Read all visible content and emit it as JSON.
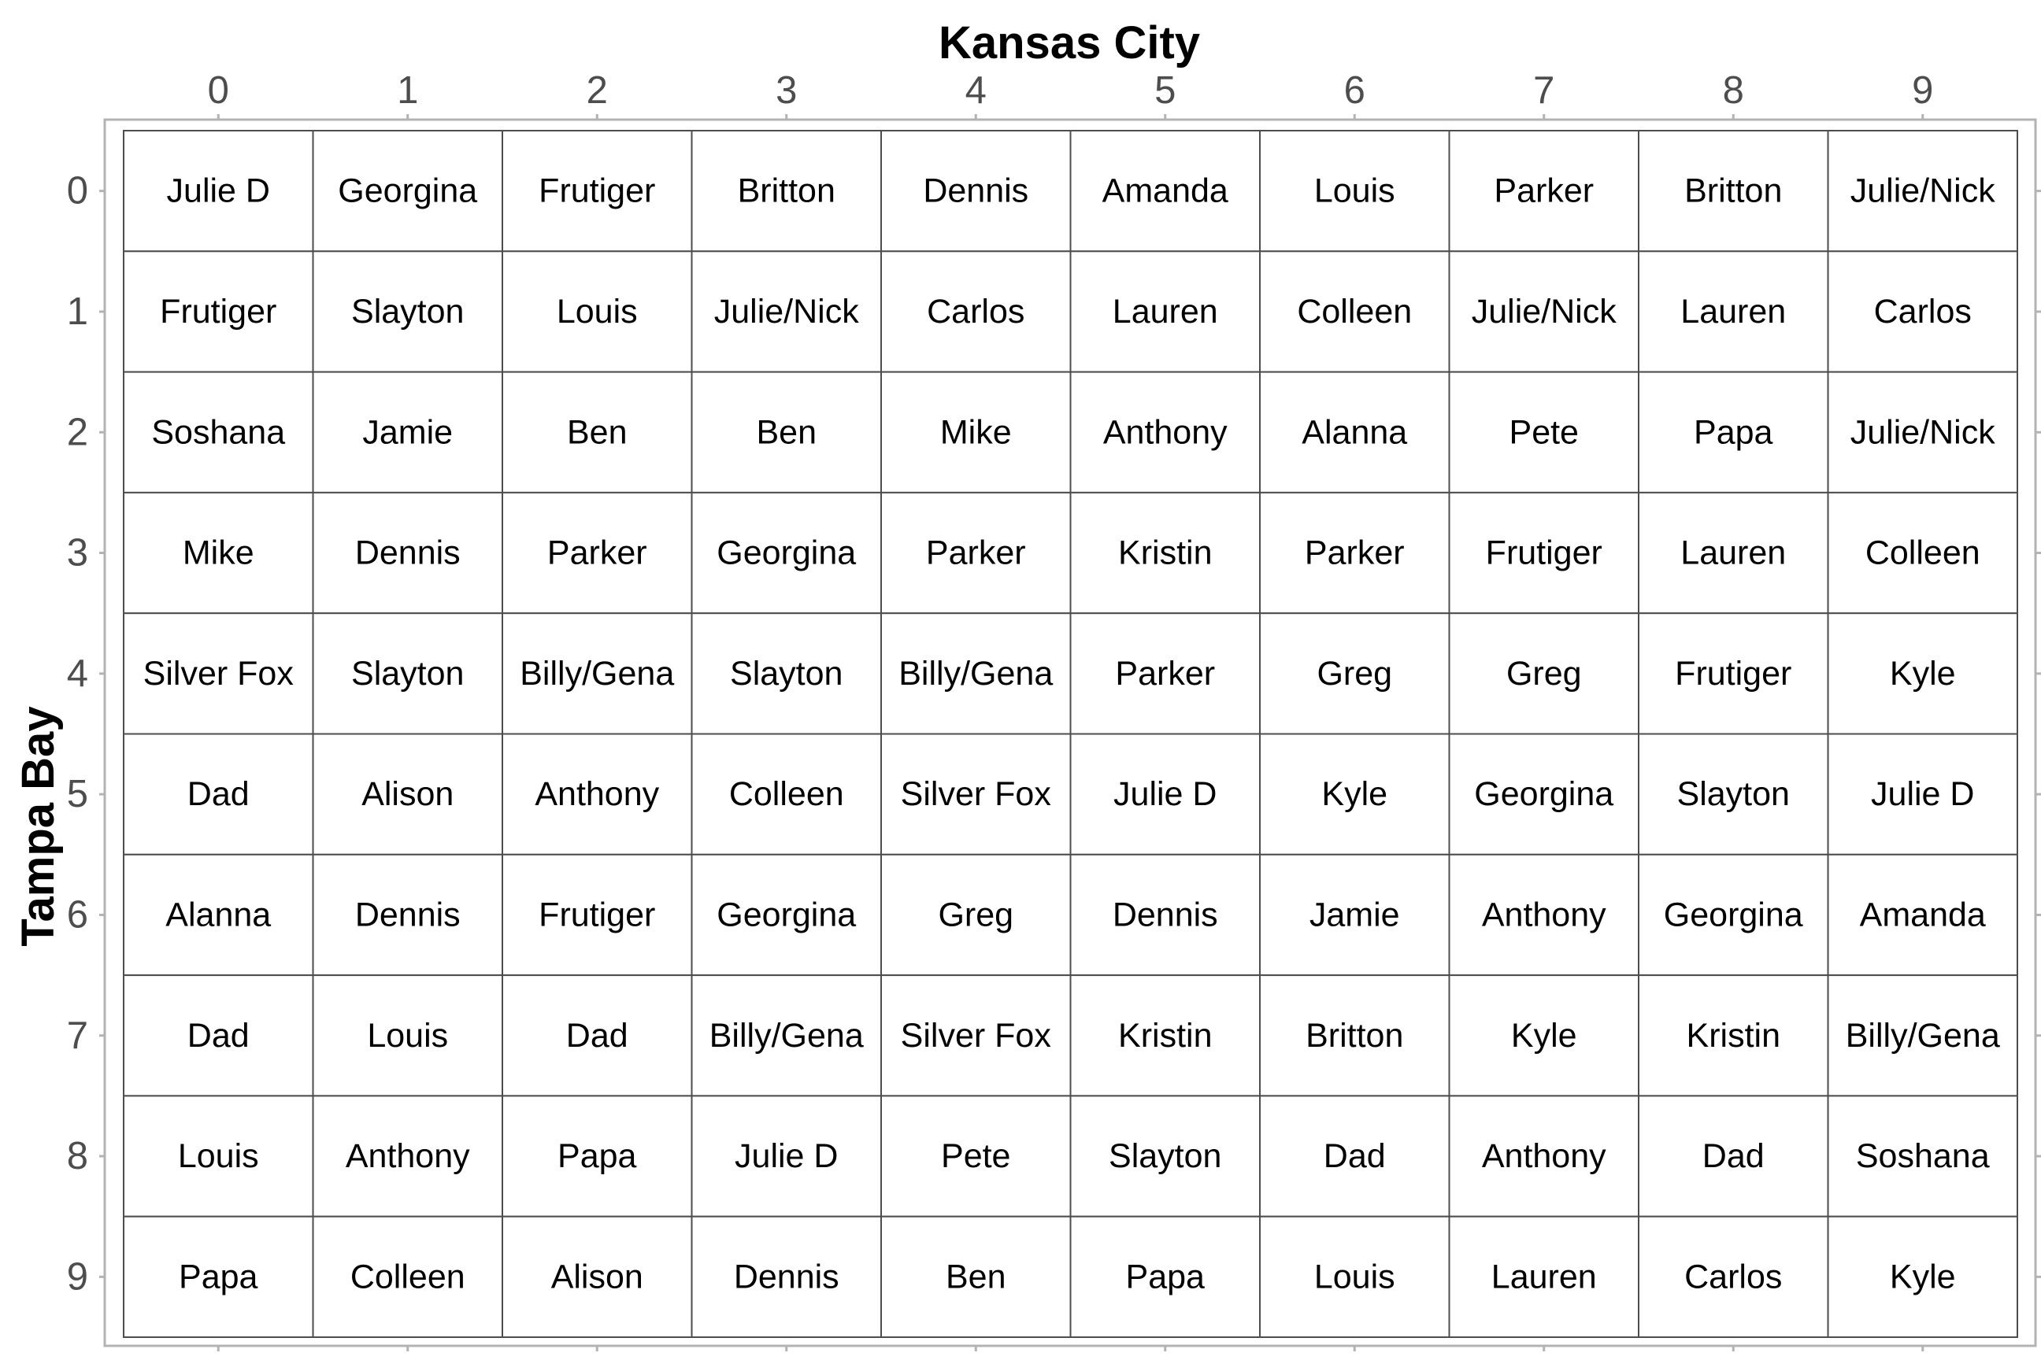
{
  "chart_data": {
    "type": "table",
    "xlabel": "Kansas City",
    "ylabel": "Tampa Bay",
    "x_ticks": [
      "0",
      "1",
      "2",
      "3",
      "4",
      "5",
      "6",
      "7",
      "8",
      "9"
    ],
    "y_ticks": [
      "0",
      "1",
      "2",
      "3",
      "4",
      "5",
      "6",
      "7",
      "8",
      "9"
    ],
    "rows": [
      [
        "Julie D",
        "Georgina",
        "Frutiger",
        "Britton",
        "Dennis",
        "Amanda",
        "Louis",
        "Parker",
        "Britton",
        "Julie/Nick"
      ],
      [
        "Frutiger",
        "Slayton",
        "Louis",
        "Julie/Nick",
        "Carlos",
        "Lauren",
        "Colleen",
        "Julie/Nick",
        "Lauren",
        "Carlos"
      ],
      [
        "Soshana",
        "Jamie",
        "Ben",
        "Ben",
        "Mike",
        "Anthony",
        "Alanna",
        "Pete",
        "Papa",
        "Julie/Nick"
      ],
      [
        "Mike",
        "Dennis",
        "Parker",
        "Georgina",
        "Parker",
        "Kristin",
        "Parker",
        "Frutiger",
        "Lauren",
        "Colleen"
      ],
      [
        "Silver Fox",
        "Slayton",
        "Billy/Gena",
        "Slayton",
        "Billy/Gena",
        "Parker",
        "Greg",
        "Greg",
        "Frutiger",
        "Kyle"
      ],
      [
        "Dad",
        "Alison",
        "Anthony",
        "Colleen",
        "Silver Fox",
        "Julie D",
        "Kyle",
        "Georgina",
        "Slayton",
        "Julie D"
      ],
      [
        "Alanna",
        "Dennis",
        "Frutiger",
        "Georgina",
        "Greg",
        "Dennis",
        "Jamie",
        "Anthony",
        "Georgina",
        "Amanda"
      ],
      [
        "Dad",
        "Louis",
        "Dad",
        "Billy/Gena",
        "Silver Fox",
        "Kristin",
        "Britton",
        "Kyle",
        "Kristin",
        "Billy/Gena"
      ],
      [
        "Louis",
        "Anthony",
        "Papa",
        "Julie D",
        "Pete",
        "Slayton",
        "Dad",
        "Anthony",
        "Dad",
        "Soshana"
      ],
      [
        "Papa",
        "Colleen",
        "Alison",
        "Dennis",
        "Ben",
        "Papa",
        "Louis",
        "Lauren",
        "Carlos",
        "Kyle"
      ]
    ],
    "grid": true,
    "legend": "none"
  },
  "colors": {
    "tile_fill": "#ffffff",
    "tile_border": "#4d4d4d",
    "panel_border": "#b3b3b3",
    "tick_mark": "#b3b3b3",
    "tick_text": "#4d4d4d",
    "cell_text": "#000000",
    "title_text": "#000000"
  }
}
